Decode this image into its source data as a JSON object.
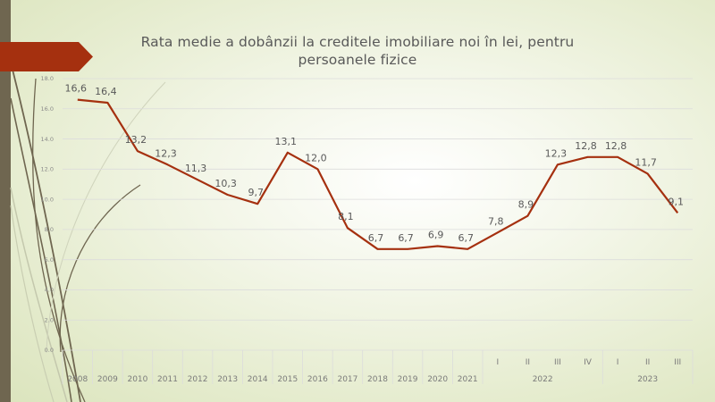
{
  "slide": {
    "accent_color": "#a5300f",
    "sidebar_color": "#6f6650"
  },
  "chart_data": {
    "type": "line",
    "title": "Rata medie a dobânzii la creditele imobiliare noi în lei, pentru persoanele fizice",
    "xlabel": "",
    "ylabel": "",
    "ylim": [
      0,
      18
    ],
    "yticks": [
      "0,0",
      "2,0",
      "4,0",
      "6,0",
      "8,0",
      "10,0",
      "12,0",
      "14,0",
      "16,0",
      "18,0"
    ],
    "grid": true,
    "legend": "none",
    "categories": [
      "2008",
      "2009",
      "2010",
      "2011",
      "2012",
      "2013",
      "2014",
      "2015",
      "2016",
      "2017",
      "2018",
      "2019",
      "2020",
      "2021",
      "2022 I",
      "2022 II",
      "2022 III",
      "2022 IV",
      "2023 I",
      "2023 II",
      "2023 III"
    ],
    "x_tick_labels": [
      "2008",
      "2009",
      "2010",
      "2011",
      "2012",
      "2013",
      "2014",
      "2015",
      "2016",
      "2017",
      "2018",
      "2019",
      "2020",
      "2021",
      "I",
      "II",
      "III",
      "IV",
      "I",
      "II",
      "III"
    ],
    "x_groups": [
      {
        "label": "2022",
        "span": [
          14,
          17
        ]
      },
      {
        "label": "2023",
        "span": [
          18,
          20
        ]
      }
    ],
    "series": [
      {
        "name": "Rata medie a dobânzii",
        "color": "#a5300f",
        "values": [
          16.6,
          16.4,
          13.2,
          12.3,
          11.3,
          10.3,
          9.7,
          13.1,
          12.0,
          8.1,
          6.7,
          6.7,
          6.9,
          6.7,
          7.8,
          8.9,
          12.3,
          12.8,
          12.8,
          11.7,
          9.1
        ],
        "data_labels": [
          "16,6",
          "16,4",
          "13,2",
          "12,3",
          "11,3",
          "10,3",
          "9,7",
          "13,1",
          "12,0",
          "8,1",
          "6,7",
          "6,7",
          "6,9",
          "6,7",
          "7,8",
          "8,9",
          "12,3",
          "12,8",
          "12,8",
          "11,7",
          "9,1"
        ]
      }
    ]
  }
}
